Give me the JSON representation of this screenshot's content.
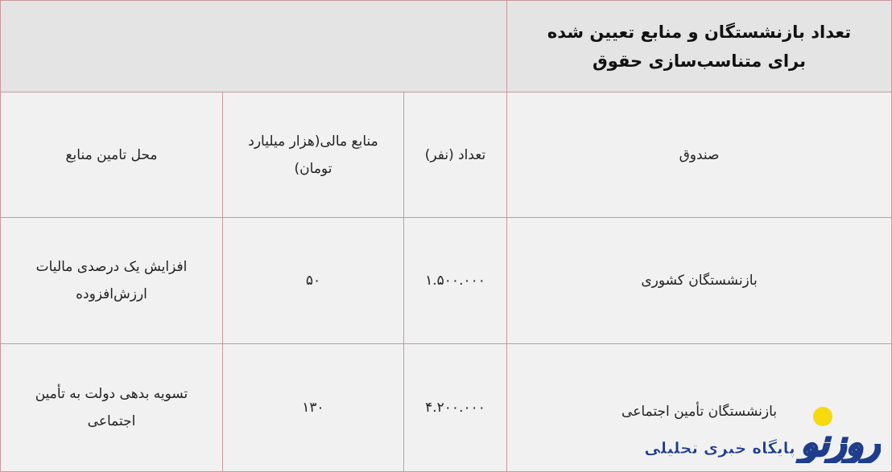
{
  "title": "تعداد بازنشستگان و منابع تعیین شده برای متناسب‌سازی حقوق",
  "columns": [
    "صندوق",
    "تعداد (نفر)",
    "منابع مالی(هزار میلیارد تومان)",
    "محل تامین منابع"
  ],
  "rows": [
    {
      "fund": "بازنشستگان کشوری",
      "count": "۱.۵۰۰.۰۰۰",
      "resources": "۵۰",
      "source": "افزایش یک درصدی مالیات ارزش‌افزوده"
    },
    {
      "fund": "بازنشستگان تأمین اجتماعی",
      "count": "۴.۲۰۰.۰۰۰",
      "resources": "۱۳۰",
      "source": "تسویه بدهی دولت به تأمین اجتماعی"
    }
  ],
  "watermark": {
    "brand": "روزنو",
    "tagline": "پایگاه خبری تحلیلی",
    "colors": {
      "blue": "#1f3d8c",
      "yellow": "#f7d90f"
    }
  }
}
